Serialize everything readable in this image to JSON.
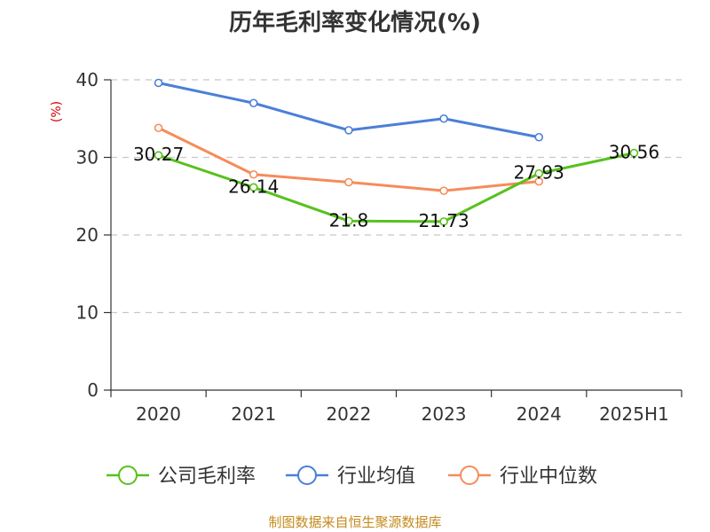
{
  "title": "历年毛利率变化情况(%)",
  "source": "制图数据来自恒生聚源数据库",
  "colors": {
    "company": "#58c11e",
    "industry_avg": "#4b7fd8",
    "industry_median": "#f58c5a",
    "grid": "#c8c8c8",
    "axis": "#333333",
    "unit": "#d40000",
    "source": "#c48a1c"
  },
  "chart_data": {
    "type": "line",
    "title": "历年毛利率变化情况(%)",
    "xlabel": "",
    "ylabel": "(%)",
    "ylim": [
      0,
      40
    ],
    "yticks": [
      0,
      10,
      20,
      30,
      40
    ],
    "grid": true,
    "legend_position": "bottom",
    "categories": [
      "2020",
      "2021",
      "2022",
      "2023",
      "2024",
      "2025H1"
    ],
    "series": [
      {
        "name": "公司毛利率",
        "color": "#58c11e",
        "values": [
          30.27,
          26.14,
          21.8,
          21.73,
          27.93,
          30.56
        ],
        "data_labels": [
          "30.27",
          "26.14",
          "21.8",
          "21.73",
          "27.93",
          "30.56"
        ]
      },
      {
        "name": "行业均值",
        "color": "#4b7fd8",
        "values": [
          39.6,
          37.0,
          33.5,
          35.0,
          32.6,
          null
        ],
        "data_labels": []
      },
      {
        "name": "行业中位数",
        "color": "#f58c5a",
        "values": [
          33.8,
          27.8,
          26.8,
          25.7,
          26.9,
          null
        ],
        "data_labels": []
      }
    ]
  }
}
